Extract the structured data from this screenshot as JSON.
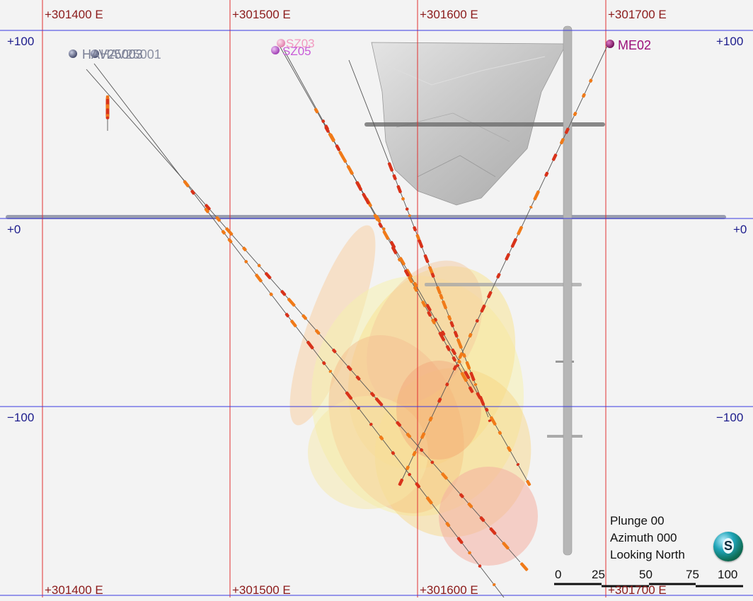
{
  "grid": {
    "eastings": [
      "+301400 E",
      "+301500 E",
      "+301600 E",
      "+301700 E"
    ],
    "elevations": [
      "+100",
      "+0",
      "−100"
    ],
    "line_colors": {
      "easting": "#e03030",
      "elevation": "#3a3ae0"
    }
  },
  "collars": {
    "left_cluster": "HAV25003",
    "left_cluster_overlap": "HAV25001",
    "sz03": "SZ03",
    "sz05": "SZ05",
    "me02": "ME02"
  },
  "view": {
    "plunge": "Plunge 00",
    "azimuth": "Azimuth 000",
    "looking": "Looking North",
    "compass": "S"
  },
  "scale_bar": {
    "ticks": [
      "0",
      "25",
      "50",
      "75",
      "100"
    ]
  },
  "colors": {
    "collar_left": "#5a6082",
    "collar_sz03": "#f29ac0",
    "collar_sz05": "#c85ad8",
    "collar_me02": "#9b0f7a",
    "assay_orange": "#f07a18",
    "assay_red": "#d8321a",
    "pit_shell": "#bcbcbc"
  }
}
